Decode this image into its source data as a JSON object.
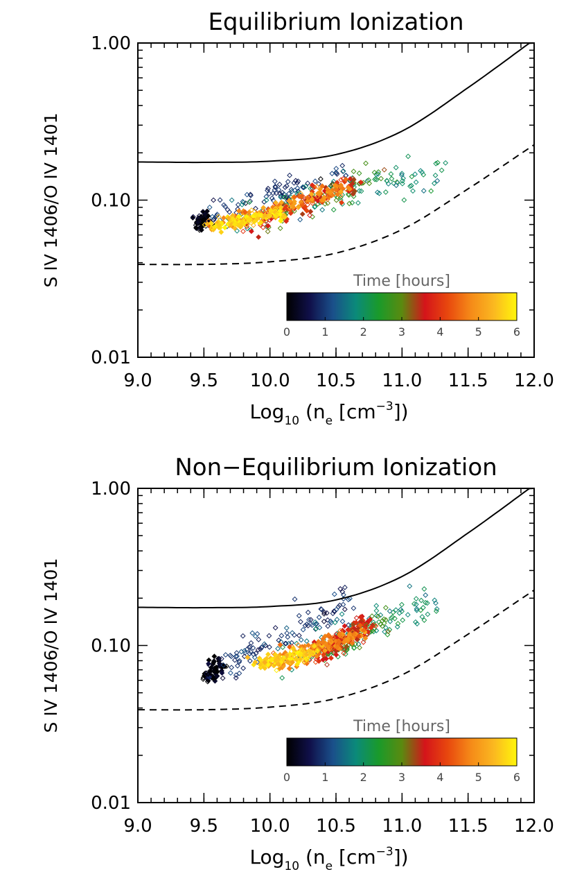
{
  "chart_data": [
    {
      "type": "scatter",
      "title": "Equilibrium Ionization",
      "xlabel": "Log",
      "xlabel_sub": "10",
      "xlabel_tail": "(n",
      "xlabel_sub2": "e",
      "xlabel_end": "[cm",
      "xlabel_sup": "−3",
      "xlabel_close": "])",
      "ylabel": "S IV 1406/O IV 1401",
      "xlim": [
        9.0,
        12.0
      ],
      "ylim": [
        0.01,
        1.0
      ],
      "yscale": "log",
      "x_ticks": [
        "9.0",
        "9.5",
        "10.0",
        "10.5",
        "11.0",
        "11.5",
        "12.0"
      ],
      "y_ticks": [
        "0.01",
        "0.10",
        "1.00"
      ],
      "colorbar": {
        "title": "Time [hours]",
        "ticks": [
          "0",
          "1",
          "2",
          "3",
          "4",
          "5",
          "6"
        ],
        "range": [
          0,
          6
        ],
        "placement": "lower-right"
      },
      "colormap": [
        "#000000",
        "#10104a",
        "#1a4f8a",
        "#0b8a7a",
        "#1a9a2a",
        "#5a8a10",
        "#d4141a",
        "#e8480e",
        "#f58a18",
        "#fbb820",
        "#fff60a"
      ],
      "curves": [
        {
          "style": "solid",
          "x": [
            9.0,
            9.5,
            10.0,
            10.5,
            11.0,
            11.5,
            12.0
          ],
          "y": [
            0.175,
            0.174,
            0.177,
            0.195,
            0.275,
            0.52,
            1.05
          ]
        },
        {
          "style": "dashed",
          "x": [
            9.0,
            9.5,
            10.0,
            10.5,
            11.0,
            11.5,
            12.0
          ],
          "y": [
            0.039,
            0.039,
            0.0405,
            0.046,
            0.065,
            0.118,
            0.225
          ]
        }
      ],
      "clusters": [
        {
          "t": 0.1,
          "n": 60,
          "x0": 9.46,
          "x1": 9.52,
          "y0": 0.07,
          "y1": 0.078,
          "s": 0.05,
          "fill": true
        },
        {
          "t": 0.9,
          "n": 95,
          "x0": 9.55,
          "x1": 10.6,
          "y0": 0.08,
          "y1": 0.15,
          "s": 0.1
        },
        {
          "t": 1.9,
          "n": 110,
          "x0": 9.7,
          "x1": 11.3,
          "y0": 0.075,
          "y1": 0.16,
          "s": 0.1
        },
        {
          "t": 2.8,
          "n": 60,
          "x0": 10.0,
          "x1": 10.9,
          "y0": 0.075,
          "y1": 0.15,
          "s": 0.09
        },
        {
          "t": 3.8,
          "n": 110,
          "x0": 9.85,
          "x1": 10.65,
          "y0": 0.068,
          "y1": 0.13,
          "s": 0.07,
          "fill": true
        },
        {
          "t": 4.8,
          "n": 130,
          "x0": 9.6,
          "x1": 10.6,
          "y0": 0.069,
          "y1": 0.12,
          "s": 0.05,
          "fill": true
        },
        {
          "t": 5.7,
          "n": 110,
          "x0": 9.55,
          "x1": 10.1,
          "y0": 0.068,
          "y1": 0.082,
          "s": 0.04,
          "fill": true
        }
      ]
    },
    {
      "type": "scatter",
      "title": "Non−Equilibrium Ionization",
      "xlabel": "Log",
      "xlabel_sub": "10",
      "xlabel_tail": "(n",
      "xlabel_sub2": "e",
      "xlabel_end": "[cm",
      "xlabel_sup": "−3",
      "xlabel_close": "])",
      "ylabel": "S IV 1406/O IV 1401",
      "xlim": [
        9.0,
        12.0
      ],
      "ylim": [
        0.01,
        1.0
      ],
      "yscale": "log",
      "x_ticks": [
        "9.0",
        "9.5",
        "10.0",
        "10.5",
        "11.0",
        "11.5",
        "12.0"
      ],
      "y_ticks": [
        "0.01",
        "0.10",
        "1.00"
      ],
      "colorbar": {
        "title": "Time [hours]",
        "ticks": [
          "0",
          "1",
          "2",
          "3",
          "4",
          "5",
          "6"
        ],
        "range": [
          0,
          6
        ],
        "placement": "lower-right"
      },
      "colormap": [
        "#000000",
        "#10104a",
        "#1a4f8a",
        "#0b8a7a",
        "#1a9a2a",
        "#5a8a10",
        "#d4141a",
        "#e8480e",
        "#f58a18",
        "#fbb820",
        "#fff60a"
      ],
      "curves": [
        {
          "style": "solid",
          "x": [
            9.0,
            9.5,
            10.0,
            10.5,
            11.0,
            11.5,
            12.0
          ],
          "y": [
            0.175,
            0.174,
            0.177,
            0.195,
            0.275,
            0.52,
            1.05
          ]
        },
        {
          "style": "dashed",
          "x": [
            9.0,
            9.5,
            10.0,
            10.5,
            11.0,
            11.5,
            12.0
          ],
          "y": [
            0.039,
            0.039,
            0.0405,
            0.046,
            0.065,
            0.118,
            0.225
          ]
        }
      ],
      "clusters": [
        {
          "t": 0.1,
          "n": 60,
          "x0": 9.52,
          "x1": 9.62,
          "y0": 0.062,
          "y1": 0.076,
          "s": 0.05,
          "fill": true
        },
        {
          "t": 0.9,
          "n": 110,
          "x0": 9.65,
          "x1": 10.6,
          "y0": 0.075,
          "y1": 0.19,
          "s": 0.12
        },
        {
          "t": 1.9,
          "n": 110,
          "x0": 10.1,
          "x1": 11.3,
          "y0": 0.08,
          "y1": 0.2,
          "s": 0.12
        },
        {
          "t": 2.8,
          "n": 60,
          "x0": 10.4,
          "x1": 10.9,
          "y0": 0.085,
          "y1": 0.15,
          "s": 0.09
        },
        {
          "t": 3.7,
          "n": 140,
          "x0": 10.35,
          "x1": 10.75,
          "y0": 0.085,
          "y1": 0.14,
          "s": 0.07,
          "fill": true
        },
        {
          "t": 4.8,
          "n": 140,
          "x0": 10.0,
          "x1": 10.7,
          "y0": 0.076,
          "y1": 0.12,
          "s": 0.06,
          "fill": true
        },
        {
          "t": 5.7,
          "n": 120,
          "x0": 9.9,
          "x1": 10.35,
          "y0": 0.075,
          "y1": 0.09,
          "s": 0.04,
          "fill": true
        }
      ]
    }
  ]
}
